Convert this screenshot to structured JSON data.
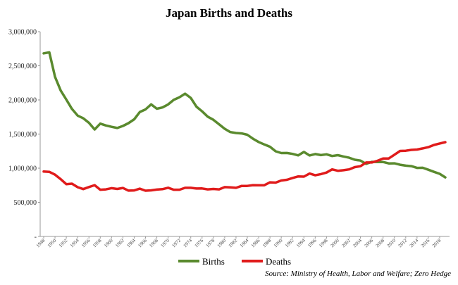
{
  "chart_data": {
    "type": "line",
    "title": "Japan Births and Deaths",
    "source": "Source: Ministry of Health, Labor and Welfare; Zero Hedge",
    "ylim": [
      0,
      3000000
    ],
    "yticks": [
      "3,000,000",
      "2,500,000",
      "2,000,000",
      "1,500,000",
      "1,000,000",
      "500,000",
      "-"
    ],
    "ytick_values": [
      3000000,
      2500000,
      2000000,
      1500000,
      1000000,
      500000,
      0
    ],
    "x": [
      1948,
      1949,
      1950,
      1951,
      1952,
      1953,
      1954,
      1955,
      1956,
      1957,
      1958,
      1959,
      1960,
      1961,
      1962,
      1963,
      1964,
      1965,
      1966,
      1967,
      1968,
      1969,
      1970,
      1971,
      1972,
      1973,
      1974,
      1975,
      1976,
      1977,
      1978,
      1979,
      1980,
      1981,
      1982,
      1983,
      1984,
      1985,
      1986,
      1987,
      1988,
      1989,
      1990,
      1991,
      1992,
      1993,
      1994,
      1995,
      1996,
      1997,
      1998,
      1999,
      2000,
      2001,
      2002,
      2003,
      2004,
      2005,
      2006,
      2007,
      2008,
      2009,
      2010,
      2011,
      2012,
      2013,
      2014,
      2015,
      2016,
      2017,
      2018,
      2019
    ],
    "xticks": [
      1948,
      1950,
      1952,
      1954,
      1956,
      1958,
      1960,
      1962,
      1964,
      1966,
      1968,
      1970,
      1972,
      1974,
      1976,
      1978,
      1980,
      1982,
      1984,
      1986,
      1988,
      1990,
      1992,
      1994,
      1996,
      1998,
      2000,
      2002,
      2004,
      2006,
      2008,
      2010,
      2012,
      2014,
      2016,
      2018
    ],
    "series": [
      {
        "name": "Births",
        "color": "#5a8a2e",
        "values": [
          2682000,
          2697000,
          2338000,
          2138000,
          2005000,
          1868000,
          1770000,
          1731000,
          1665000,
          1567000,
          1653000,
          1626000,
          1606000,
          1589000,
          1619000,
          1660000,
          1717000,
          1824000,
          1861000,
          1935000,
          1871000,
          1890000,
          1934000,
          2001000,
          2039000,
          2092000,
          2030000,
          1901000,
          1833000,
          1755000,
          1709000,
          1643000,
          1577000,
          1529000,
          1515000,
          1509000,
          1490000,
          1432000,
          1383000,
          1347000,
          1314000,
          1247000,
          1222000,
          1223000,
          1209000,
          1188000,
          1238000,
          1187000,
          1207000,
          1192000,
          1203000,
          1178000,
          1191000,
          1171000,
          1154000,
          1124000,
          1111000,
          1063000,
          1093000,
          1090000,
          1091000,
          1070000,
          1071000,
          1051000,
          1037000,
          1030000,
          1004000,
          1006000,
          977000,
          946000,
          918000,
          865000
        ]
      },
      {
        "name": "Deaths",
        "color": "#e01b1b",
        "values": [
          951000,
          946000,
          905000,
          839000,
          766000,
          773000,
          722000,
          694000,
          724000,
          752000,
          685000,
          690000,
          707000,
          696000,
          710000,
          671000,
          674000,
          700000,
          670000,
          675000,
          687000,
          693000,
          713000,
          685000,
          685000,
          712000,
          712000,
          702000,
          703000,
          690000,
          696000,
          690000,
          723000,
          720000,
          712000,
          740000,
          740000,
          752000,
          750000,
          751000,
          793000,
          789000,
          820000,
          830000,
          857000,
          879000,
          876000,
          922000,
          896000,
          913000,
          936000,
          982000,
          962000,
          970000,
          982000,
          1015000,
          1029000,
          1084000,
          1084000,
          1108000,
          1142000,
          1142000,
          1197000,
          1253000,
          1256000,
          1268000,
          1273000,
          1290000,
          1308000,
          1340000,
          1362000,
          1381000
        ]
      }
    ]
  }
}
